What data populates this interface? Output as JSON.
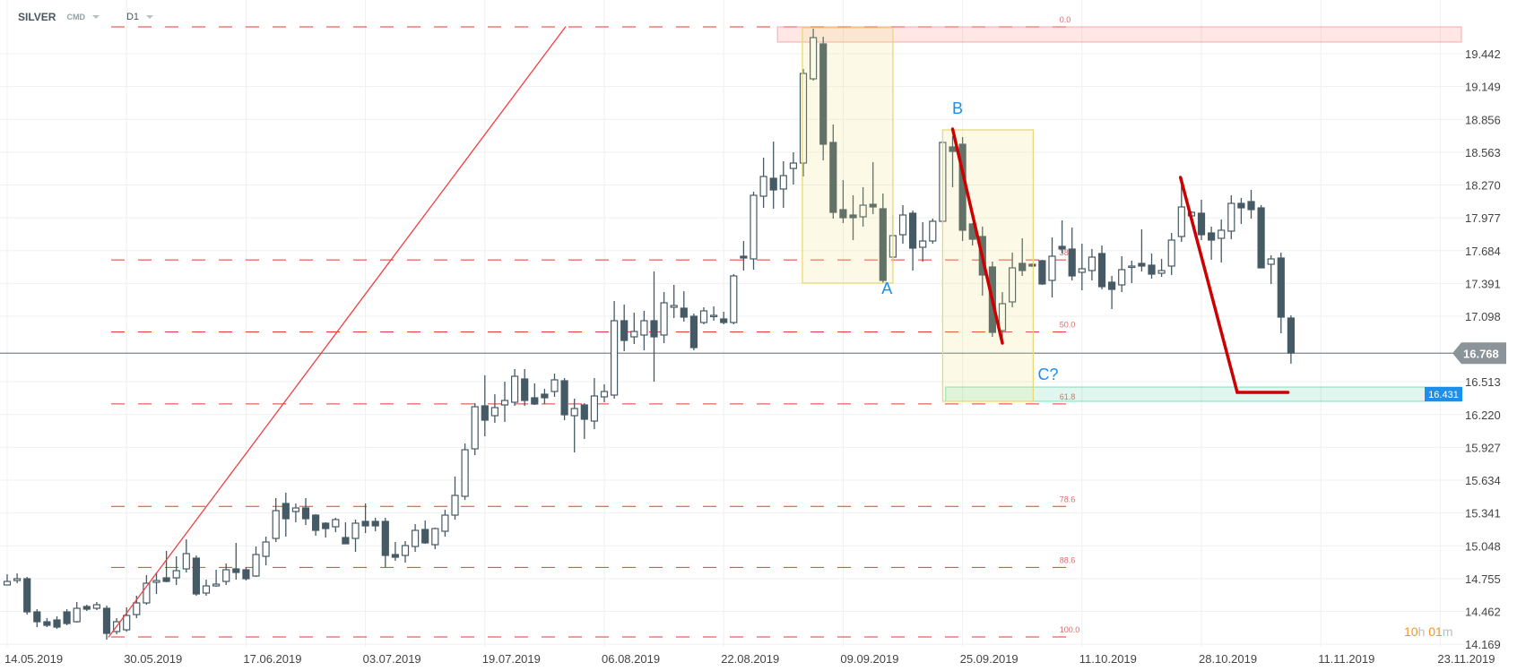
{
  "header": {
    "symbol": "SILVER",
    "instrument_type": "CMD",
    "timeframe": "D1"
  },
  "countdown": {
    "hours": "10",
    "hours_unit": "h",
    "minutes": "01",
    "minutes_unit": "m",
    "color": "#f7941d"
  },
  "colors": {
    "bear": "#455a64",
    "bull_fill": "#ffffff",
    "fib_line": "#e53935",
    "trend_line": "#cc0000",
    "wave_label": "#1e8fe8",
    "current_price_bg": "#8a9499",
    "target_label_bg": "#1e8fe8"
  },
  "chart_data": {
    "type": "candlestick",
    "title": "",
    "grid": true,
    "y_axis": {
      "position": "right",
      "range": [
        14.14,
        19.92
      ]
    },
    "y_ticks": [
      "19.442",
      "19.149",
      "18.856",
      "18.563",
      "18.270",
      "17.977",
      "17.684",
      "17.391",
      "17.098",
      "16.513",
      "16.220",
      "15.927",
      "15.634",
      "15.341",
      "15.048",
      "14.755",
      "14.462",
      "14.169"
    ],
    "x_ticks": [
      {
        "label": "14.05.2019",
        "bar": 0
      },
      {
        "label": "30.05.2019",
        "bar": 12
      },
      {
        "label": "17.06.2019",
        "bar": 24
      },
      {
        "label": "03.07.2019",
        "bar": 36
      },
      {
        "label": "19.07.2019",
        "bar": 48
      },
      {
        "label": "06.08.2019",
        "bar": 60
      },
      {
        "label": "22.08.2019",
        "bar": 72
      },
      {
        "label": "09.09.2019",
        "bar": 84
      },
      {
        "label": "25.09.2019",
        "bar": 96
      },
      {
        "label": "11.10.2019",
        "bar": 108
      },
      {
        "label": "28.10.2019",
        "bar": 120
      },
      {
        "label": "11.11.2019",
        "bar": 132
      },
      {
        "label": "23.11.2019",
        "bar": 144
      }
    ],
    "candles_ohlc": [
      [
        14.698,
        14.794,
        14.698,
        14.73
      ],
      [
        14.738,
        14.802,
        14.714,
        14.754
      ],
      [
        14.754,
        14.77,
        14.434,
        14.458
      ],
      [
        14.458,
        14.482,
        14.322,
        14.37
      ],
      [
        14.37,
        14.402,
        14.322,
        14.338
      ],
      [
        14.386,
        14.418,
        14.306,
        14.322
      ],
      [
        14.458,
        14.482,
        14.338,
        14.354
      ],
      [
        14.37,
        14.546,
        14.362,
        14.49
      ],
      [
        14.506,
        14.522,
        14.466,
        14.482
      ],
      [
        14.49,
        14.546,
        14.474,
        14.522
      ],
      [
        14.49,
        14.514,
        14.21,
        14.266
      ],
      [
        14.282,
        14.402,
        14.258,
        14.37
      ],
      [
        14.298,
        14.498,
        14.282,
        14.426
      ],
      [
        14.434,
        14.602,
        14.402,
        14.538
      ],
      [
        14.538,
        14.786,
        14.522,
        14.714
      ],
      [
        14.722,
        14.81,
        14.618,
        14.738
      ],
      [
        14.762,
        15.002,
        14.722,
        14.73
      ],
      [
        14.762,
        14.954,
        14.698,
        14.826
      ],
      [
        14.842,
        15.106,
        14.81,
        14.978
      ],
      [
        14.938,
        14.962,
        14.602,
        14.618
      ],
      [
        14.626,
        14.746,
        14.602,
        14.69
      ],
      [
        14.69,
        14.834,
        14.682,
        14.706
      ],
      [
        14.73,
        14.89,
        14.698,
        14.834
      ],
      [
        14.842,
        15.074,
        14.746,
        14.81
      ],
      [
        14.834,
        14.858,
        14.738,
        14.754
      ],
      [
        14.778,
        15.042,
        14.77,
        14.97
      ],
      [
        14.954,
        15.13,
        14.874,
        15.082
      ],
      [
        15.114,
        15.474,
        15.082,
        15.362
      ],
      [
        15.426,
        15.522,
        15.13,
        15.29
      ],
      [
        15.354,
        15.426,
        15.258,
        15.386
      ],
      [
        15.386,
        15.474,
        15.234,
        15.29
      ],
      [
        15.322,
        15.33,
        15.138,
        15.186
      ],
      [
        15.25,
        15.258,
        15.122,
        15.202
      ],
      [
        15.218,
        15.298,
        15.17,
        15.282
      ],
      [
        15.122,
        15.258,
        15.066,
        15.066
      ],
      [
        15.114,
        15.282,
        14.994,
        15.25
      ],
      [
        15.266,
        15.426,
        15.162,
        15.226
      ],
      [
        15.266,
        15.298,
        15.178,
        15.226
      ],
      [
        15.266,
        15.298,
        14.858,
        14.962
      ],
      [
        14.97,
        15.082,
        14.914,
        14.946
      ],
      [
        14.962,
        15.09,
        14.898,
        15.05
      ],
      [
        15.042,
        15.242,
        14.994,
        15.186
      ],
      [
        15.194,
        15.274,
        15.066,
        15.074
      ],
      [
        15.058,
        15.21,
        15.018,
        15.202
      ],
      [
        15.178,
        15.37,
        15.13,
        15.322
      ],
      [
        15.322,
        15.666,
        15.282,
        15.498
      ],
      [
        15.49,
        15.962,
        15.458,
        15.906
      ],
      [
        15.914,
        16.322,
        15.858,
        16.29
      ],
      [
        16.298,
        16.57,
        16.026,
        16.17
      ],
      [
        16.21,
        16.402,
        16.146,
        16.282
      ],
      [
        16.306,
        16.514,
        16.154,
        16.346
      ],
      [
        16.33,
        16.626,
        16.298,
        16.562
      ],
      [
        16.538,
        16.626,
        16.298,
        16.346
      ],
      [
        16.37,
        16.498,
        16.306,
        16.314
      ],
      [
        16.402,
        16.45,
        16.314,
        16.37
      ],
      [
        16.426,
        16.586,
        16.378,
        16.53
      ],
      [
        16.522,
        16.546,
        16.17,
        16.218
      ],
      [
        16.21,
        16.362,
        15.882,
        16.274
      ],
      [
        16.306,
        16.322,
        16.002,
        16.178
      ],
      [
        16.162,
        16.546,
        16.09,
        16.386
      ],
      [
        16.378,
        16.49,
        16.33,
        16.426
      ],
      [
        16.394,
        17.234,
        16.362,
        17.058
      ],
      [
        17.058,
        17.202,
        16.786,
        16.882
      ],
      [
        16.914,
        17.13,
        16.85,
        16.962
      ],
      [
        16.93,
        17.146,
        16.794,
        17.058
      ],
      [
        17.058,
        17.498,
        16.514,
        16.914
      ],
      [
        16.93,
        17.314,
        16.858,
        17.218
      ],
      [
        17.178,
        17.378,
        17.082,
        17.194
      ],
      [
        17.17,
        17.322,
        17.05,
        17.09
      ],
      [
        17.098,
        17.122,
        16.794,
        16.818
      ],
      [
        17.042,
        17.178,
        17.026,
        17.146
      ],
      [
        17.098,
        17.186,
        17.058,
        17.106
      ],
      [
        17.074,
        17.138,
        17.026,
        17.042
      ],
      [
        17.042,
        17.474,
        17.026,
        17.458
      ],
      [
        17.634,
        17.77,
        17.506,
        17.618
      ],
      [
        17.61,
        18.21,
        17.514,
        18.178
      ],
      [
        18.17,
        18.514,
        18.066,
        18.346
      ],
      [
        18.33,
        18.658,
        18.058,
        18.226
      ],
      [
        18.234,
        18.482,
        18.066,
        18.354
      ],
      [
        18.418,
        18.562,
        18.274,
        18.466
      ],
      [
        18.466,
        19.306,
        18.346,
        19.266
      ],
      [
        19.218,
        19.666,
        19.202,
        19.586
      ],
      [
        19.53,
        19.594,
        18.49,
        18.634
      ],
      [
        18.65,
        18.81,
        17.97,
        18.026
      ],
      [
        18.05,
        18.314,
        17.93,
        17.978
      ],
      [
        18.002,
        18.178,
        17.778,
        17.978
      ],
      [
        17.986,
        18.25,
        17.898,
        18.09
      ],
      [
        18.098,
        18.474,
        18.01,
        18.074
      ],
      [
        18.058,
        18.194,
        17.394,
        17.418
      ],
      [
        17.626,
        18.002,
        17.586,
        17.818
      ],
      [
        17.826,
        18.09,
        17.746,
        18.002
      ],
      [
        18.018,
        18.042,
        17.506,
        17.706
      ],
      [
        17.714,
        17.938,
        17.586,
        17.77
      ],
      [
        17.77,
        17.97,
        17.746,
        17.946
      ],
      [
        17.946,
        18.666,
        17.93,
        18.65
      ],
      [
        18.61,
        18.706,
        18.25,
        18.57
      ],
      [
        18.634,
        18.698,
        17.77,
        17.866
      ],
      [
        17.922,
        17.93,
        17.73,
        17.786
      ],
      [
        17.81,
        17.898,
        17.282,
        17.466
      ],
      [
        17.538,
        17.586,
        16.914,
        16.954
      ],
      [
        16.97,
        17.314,
        16.882,
        17.21
      ],
      [
        17.226,
        17.666,
        17.178,
        17.53
      ],
      [
        17.57,
        17.794,
        17.458,
        17.506
      ],
      [
        17.562,
        17.57,
        17.538,
        17.546
      ],
      [
        17.594,
        17.602,
        17.378,
        17.386
      ],
      [
        17.418,
        17.802,
        17.266,
        17.634
      ],
      [
        17.722,
        17.954,
        17.658,
        17.698
      ],
      [
        17.698,
        17.89,
        17.418,
        17.458
      ],
      [
        17.49,
        17.746,
        17.33,
        17.522
      ],
      [
        17.506,
        17.698,
        17.418,
        17.626
      ],
      [
        17.658,
        17.73,
        17.338,
        17.362
      ],
      [
        17.402,
        17.458,
        17.162,
        17.338
      ],
      [
        17.378,
        17.634,
        17.314,
        17.514
      ],
      [
        17.538,
        17.594,
        17.394,
        17.546
      ],
      [
        17.57,
        17.874,
        17.498,
        17.546
      ],
      [
        17.554,
        17.658,
        17.434,
        17.474
      ],
      [
        17.482,
        17.61,
        17.45,
        17.506
      ],
      [
        17.546,
        17.842,
        17.466,
        17.778
      ],
      [
        17.81,
        18.266,
        17.762,
        18.074
      ],
      [
        17.994,
        18.034,
        17.986,
        18.026
      ],
      [
        18.018,
        18.138,
        17.778,
        17.826
      ],
      [
        17.842,
        17.898,
        17.602,
        17.778
      ],
      [
        17.794,
        17.962,
        17.578,
        17.866
      ],
      [
        17.858,
        18.178,
        17.786,
        18.106
      ],
      [
        18.106,
        18.154,
        17.922,
        18.066
      ],
      [
        18.122,
        18.226,
        17.97,
        18.05
      ],
      [
        18.066,
        18.09,
        17.53,
        17.53
      ],
      [
        17.562,
        17.642,
        17.386,
        17.61
      ],
      [
        17.618,
        17.666,
        16.946,
        17.09
      ],
      [
        17.082,
        17.106,
        16.674,
        16.77
      ]
    ],
    "current_price": {
      "label": "16.768",
      "value": 16.768
    },
    "fibonacci": {
      "high": 19.682,
      "low": 14.234,
      "start_bar": 10,
      "end_bar": 107,
      "levels": [
        {
          "ratio": 0.0,
          "label": "0.0"
        },
        {
          "ratio": 0.382,
          "label": "38.2"
        },
        {
          "ratio": 0.5,
          "label": "50.0"
        },
        {
          "ratio": 0.618,
          "label": "61.8"
        },
        {
          "ratio": 0.786,
          "label": "78.6"
        },
        {
          "ratio": 0.886,
          "label": "88.6"
        },
        {
          "ratio": 1.0,
          "label": "100.0"
        }
      ]
    },
    "trend_lines": [
      {
        "style": "thin",
        "points": [
          [
            10.2,
            14.234
          ],
          [
            56.1,
            19.682
          ]
        ]
      },
      {
        "style": "thick",
        "points": [
          [
            95.0,
            18.77
          ],
          [
            100.0,
            16.858
          ]
        ]
      },
      {
        "style": "thick",
        "points": [
          [
            117.9,
            18.338
          ],
          [
            123.6,
            16.418
          ],
          [
            128.7,
            16.418
          ]
        ]
      }
    ],
    "boxes": [
      {
        "kind": "yellow",
        "bars": [
          79.9,
          89.0
        ],
        "prices": [
          19.674,
          17.394
        ]
      },
      {
        "kind": "yellow",
        "bars": [
          94.0,
          103.1
        ],
        "prices": [
          18.762,
          16.338
        ]
      }
    ],
    "zones": [
      {
        "kind": "resistance",
        "start_bar": 77.4,
        "prices": [
          19.682,
          19.546
        ],
        "color": "#f44336"
      },
      {
        "kind": "target",
        "start_bar": 94.3,
        "prices": [
          16.466,
          16.338
        ],
        "color": "#26c98a",
        "label": "16.431"
      }
    ],
    "wave_labels": [
      {
        "text": "A",
        "bar": 88.4,
        "price": 17.298
      },
      {
        "text": "B",
        "bar": 95.5,
        "price": 18.906
      },
      {
        "text": "C?",
        "bar": 104.6,
        "price": 16.53
      }
    ]
  }
}
